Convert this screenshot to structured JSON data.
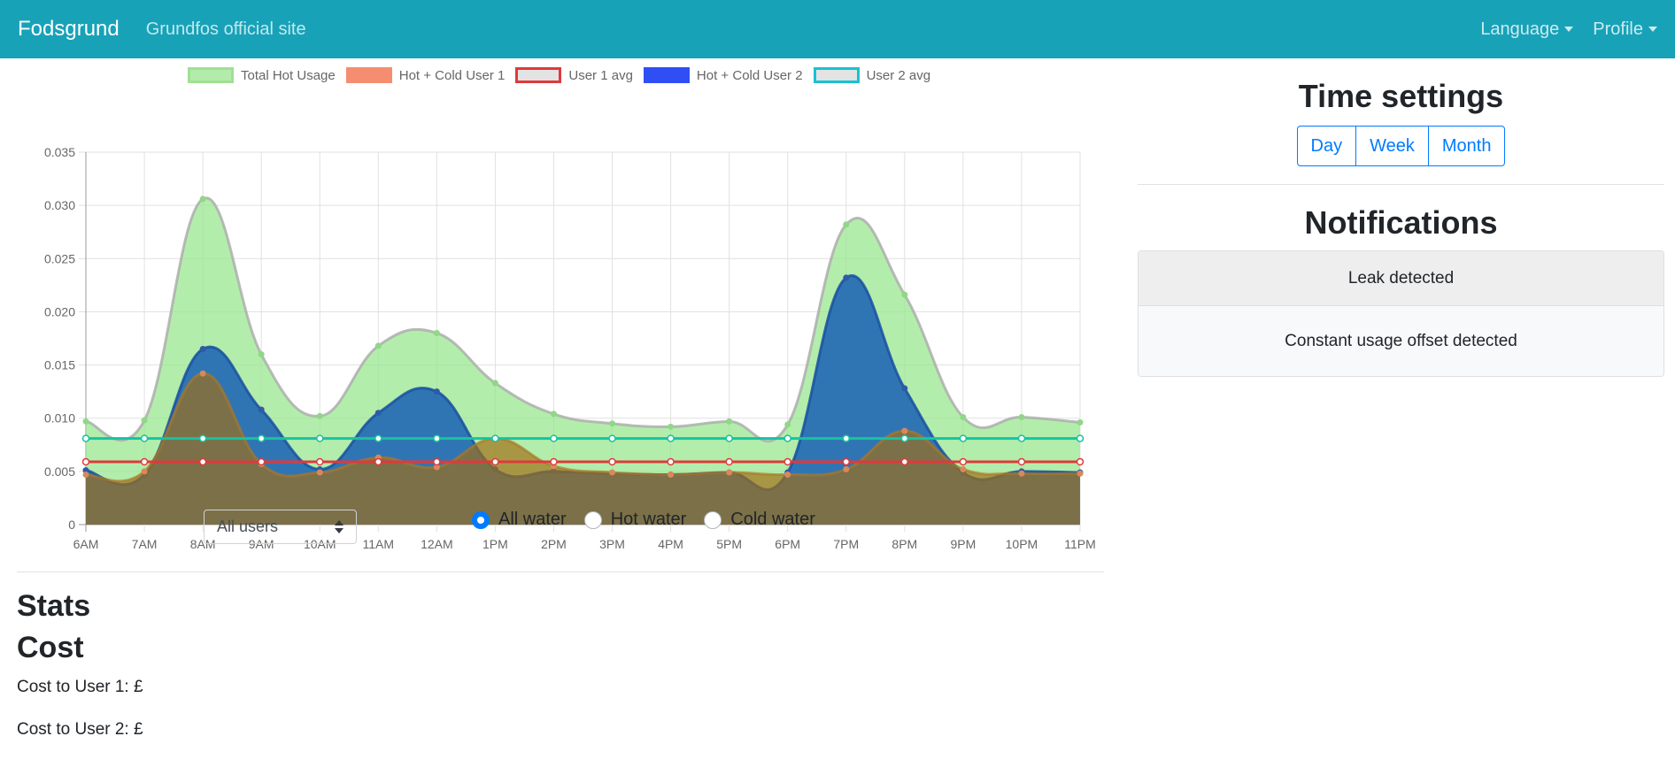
{
  "navbar": {
    "brand": "Fodsgrund",
    "link": "Grundfos official site",
    "language": "Language",
    "profile": "Profile"
  },
  "colors": {
    "navbar": "#17a2b8",
    "total_hot_fill": "#b3ecaa",
    "user1_fill": "#f58d70",
    "user1_avg": "#e0393b",
    "user2_fill": "#2f4ff5",
    "user2_avg": "#18c2d0",
    "primary": "#007bff"
  },
  "chart_data": {
    "type": "area",
    "x": [
      "6AM",
      "7AM",
      "8AM",
      "9AM",
      "10AM",
      "11AM",
      "12AM",
      "1PM",
      "2PM",
      "3PM",
      "4PM",
      "5PM",
      "6PM",
      "7PM",
      "8PM",
      "9PM",
      "10PM",
      "11PM"
    ],
    "ylim": [
      0,
      0.035
    ],
    "yticks": [
      "0",
      "0.005",
      "0.010",
      "0.015",
      "0.020",
      "0.025",
      "0.030",
      "0.035"
    ],
    "grid": true,
    "legend_position": "top",
    "series": [
      {
        "name": "Total Hot Usage",
        "type": "area",
        "values": [
          0.0097,
          0.0098,
          0.0306,
          0.016,
          0.0102,
          0.0168,
          0.018,
          0.0133,
          0.0104,
          0.0095,
          0.0092,
          0.0097,
          0.0094,
          0.0282,
          0.0216,
          0.0101,
          0.0101,
          0.0096
        ]
      },
      {
        "name": "Hot + Cold User 1",
        "type": "area",
        "values": [
          0.0047,
          0.005,
          0.0142,
          0.0057,
          0.0049,
          0.0063,
          0.0054,
          0.0081,
          0.0055,
          0.0049,
          0.0047,
          0.0049,
          0.0047,
          0.0052,
          0.0088,
          0.0052,
          0.0048,
          0.0048
        ]
      },
      {
        "name": "User 1 avg",
        "type": "line",
        "values": [
          0.0059,
          0.0059,
          0.0059,
          0.0059,
          0.0059,
          0.0059,
          0.0059,
          0.0059,
          0.0059,
          0.0059,
          0.0059,
          0.0059,
          0.0059,
          0.0059,
          0.0059,
          0.0059,
          0.0059,
          0.0059
        ]
      },
      {
        "name": "Hot + Cold User 2",
        "type": "area",
        "values": [
          0.0051,
          0.0047,
          0.0165,
          0.0108,
          0.0052,
          0.0105,
          0.0125,
          0.0052,
          0.005,
          0.0048,
          0.0047,
          0.0049,
          0.0049,
          0.0232,
          0.0128,
          0.0049,
          0.005,
          0.0049
        ]
      },
      {
        "name": "User 2 avg",
        "type": "line",
        "values": [
          0.0081,
          0.0081,
          0.0081,
          0.0081,
          0.0081,
          0.0081,
          0.0081,
          0.0081,
          0.0081,
          0.0081,
          0.0081,
          0.0081,
          0.0081,
          0.0081,
          0.0081,
          0.0081,
          0.0081,
          0.0081
        ]
      }
    ]
  },
  "controls": {
    "user_select": "All users",
    "radios": [
      {
        "label": "All water",
        "checked": true
      },
      {
        "label": "Hot water",
        "checked": false
      },
      {
        "label": "Cold water",
        "checked": false
      }
    ]
  },
  "stats": {
    "title": "Stats",
    "cost_title": "Cost",
    "cost_user1": "Cost to User 1: £",
    "cost_user2": "Cost to User 2: £"
  },
  "time_settings": {
    "title": "Time settings",
    "buttons": [
      "Day",
      "Week",
      "Month"
    ]
  },
  "notifications": {
    "title": "Notifications",
    "items": [
      "Leak detected",
      "Constant usage offset detected"
    ]
  }
}
